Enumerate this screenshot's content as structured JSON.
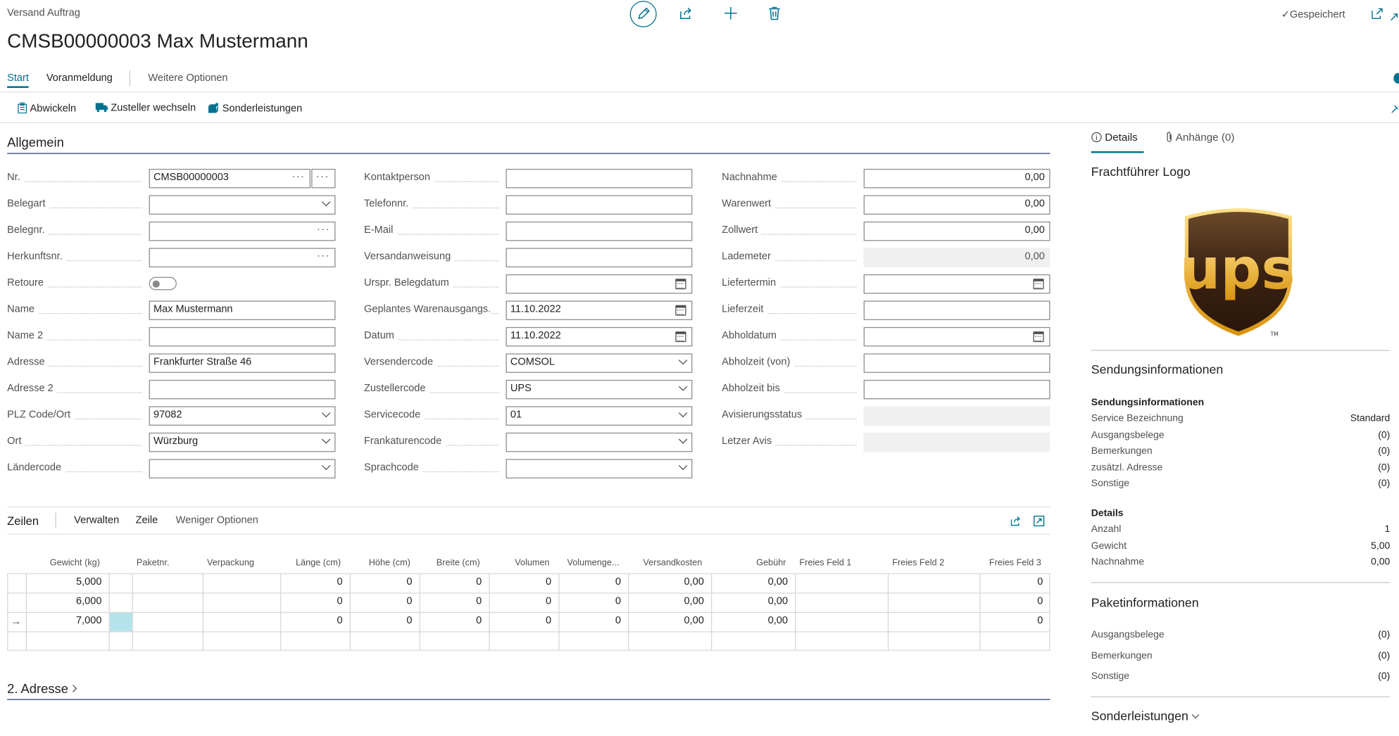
{
  "header": {
    "breadcrumb": "Versand Auftrag",
    "title": "CMSB00000003 Max Mustermann",
    "saved_label": "Gespeichert"
  },
  "tabs": {
    "start": "Start",
    "voranmeldung": "Voranmeldung",
    "weitere": "Weitere Optionen"
  },
  "actions": {
    "abwickeln": "Abwickeln",
    "zusteller_wechseln": "Zusteller wechseln",
    "sonderleistungen": "Sonderleistungen"
  },
  "general": {
    "section_title": "Allgemein",
    "col1": [
      {
        "label": "Nr.",
        "value": "CMSB00000003"
      },
      {
        "label": "Belegart",
        "value": ""
      },
      {
        "label": "Belegnr.",
        "value": ""
      },
      {
        "label": "Herkunftsnr.",
        "value": ""
      },
      {
        "label": "Retoure",
        "value": ""
      },
      {
        "label": "Name",
        "value": "Max Mustermann"
      },
      {
        "label": "Name 2",
        "value": ""
      },
      {
        "label": "Adresse",
        "value": "Frankfurter Straße 46"
      },
      {
        "label": "Adresse 2",
        "value": ""
      },
      {
        "label": "PLZ Code/Ort",
        "value": "97082"
      },
      {
        "label": "Ort",
        "value": "Würzburg"
      },
      {
        "label": "Ländercode",
        "value": ""
      }
    ],
    "col2": [
      {
        "label": "Kontaktperson",
        "value": ""
      },
      {
        "label": "Telefonnr.",
        "value": ""
      },
      {
        "label": "E-Mail",
        "value": ""
      },
      {
        "label": "Versandanweisung",
        "value": ""
      },
      {
        "label": "Urspr. Belegdatum",
        "value": ""
      },
      {
        "label": "Geplantes Warenausgangs...",
        "value": "11.10.2022"
      },
      {
        "label": "Datum",
        "value": "11.10.2022"
      },
      {
        "label": "Versendercode",
        "value": "COMSOL"
      },
      {
        "label": "Zustellercode",
        "value": "UPS"
      },
      {
        "label": "Servicecode",
        "value": "01"
      },
      {
        "label": "Frankaturencode",
        "value": ""
      },
      {
        "label": "Sprachcode",
        "value": ""
      }
    ],
    "col3": [
      {
        "label": "Nachnahme",
        "value": "0,00"
      },
      {
        "label": "Warenwert",
        "value": "0,00"
      },
      {
        "label": "Zollwert",
        "value": "0,00"
      },
      {
        "label": "Lademeter",
        "value": "0,00"
      },
      {
        "label": "Liefertermin",
        "value": ""
      },
      {
        "label": "Lieferzeit",
        "value": ""
      },
      {
        "label": "Abholdatum",
        "value": ""
      },
      {
        "label": "Abholzeit (von)",
        "value": ""
      },
      {
        "label": "Abholzeit bis",
        "value": ""
      },
      {
        "label": "Avisierungsstatus",
        "value": ""
      },
      {
        "label": "Letzer Avis",
        "value": ""
      }
    ]
  },
  "lines": {
    "title": "Zeilen",
    "menu": [
      "Verwalten",
      "Zeile",
      "Weniger Optionen"
    ],
    "columns": [
      "Gewicht (kg)",
      "Paketnr.",
      "Verpackung",
      "Länge (cm)",
      "Höhe (cm)",
      "Breite (cm)",
      "Volumen",
      "Volumenge...",
      "Versandkosten",
      "Gebühr",
      "Freies Feld 1",
      "Freies Feld 2",
      "Freies Feld 3"
    ],
    "rows": [
      [
        "5,000",
        "",
        "",
        "0",
        "0",
        "0",
        "0",
        "0",
        "0,00",
        "0,00",
        "",
        "",
        "0"
      ],
      [
        "6,000",
        "",
        "",
        "0",
        "0",
        "0",
        "0",
        "0",
        "0,00",
        "0,00",
        "",
        "",
        "0"
      ],
      [
        "7,000",
        "",
        "",
        "0",
        "0",
        "0",
        "0",
        "0",
        "0,00",
        "0,00",
        "",
        "",
        "0"
      ]
    ]
  },
  "address2": {
    "title": "2. Adresse"
  },
  "factbox": {
    "tab_details": "Details",
    "tab_attachments": "Anhänge (0)",
    "logo_title": "Frachtführer Logo",
    "logo_text": "ups",
    "logo_tm": "TM",
    "shipment_title": "Sendungsinformationen",
    "shipment_subtitle": "Sendungsinformationen",
    "shipment_rows": [
      {
        "label": "Service Bezeichnung",
        "value": "Standard"
      },
      {
        "label": "Ausgangsbelege",
        "value": "(0)"
      },
      {
        "label": "Bemerkungen",
        "value": "(0)"
      },
      {
        "label": "zusätzl. Adresse",
        "value": "(0)"
      },
      {
        "label": "Sonstige",
        "value": "(0)"
      }
    ],
    "details_subtitle": "Details",
    "details_rows": [
      {
        "label": "Anzahl",
        "value": "1"
      },
      {
        "label": "Gewicht",
        "value": "5,00"
      },
      {
        "label": "Nachnahme",
        "value": "0,00"
      }
    ],
    "package_title": "Paketinformationen",
    "package_rows": [
      {
        "label": "Ausgangsbelege",
        "value": "(0)"
      },
      {
        "label": "Bemerkungen",
        "value": "(0)"
      },
      {
        "label": "Sonstige",
        "value": "(0)"
      }
    ],
    "special_title": "Sonderleistungen"
  },
  "colors": {
    "accent": "#00718f",
    "ups_brown": "#3b2212",
    "ups_gold": "#f2b515"
  }
}
